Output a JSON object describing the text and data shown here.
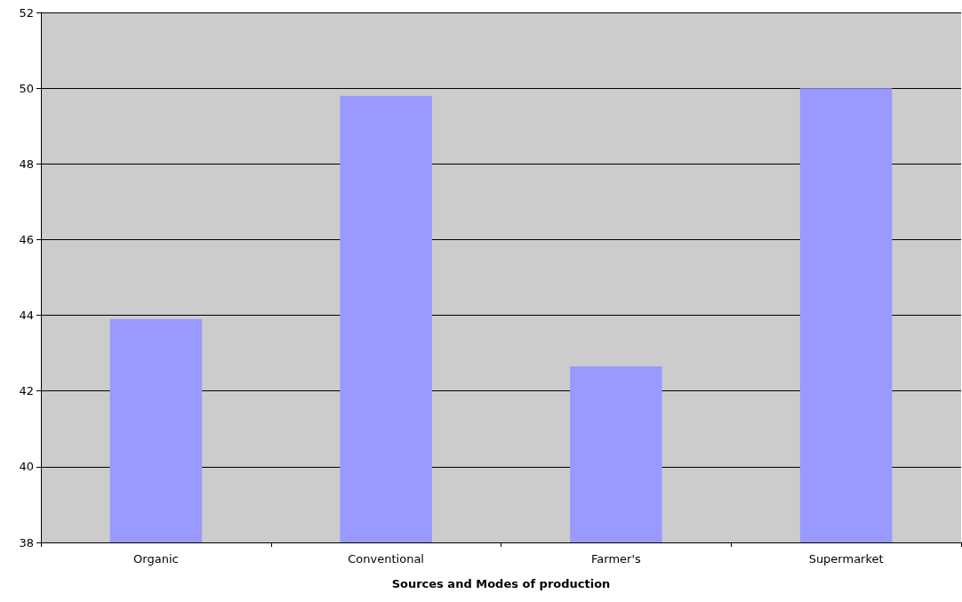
{
  "chart_data": {
    "type": "bar",
    "xlabel": "Sources and Modes of production",
    "categories": [
      "Organic",
      "Conventional",
      "Farmer's",
      "Supermarket"
    ],
    "values": [
      43.9,
      49.8,
      42.65,
      50.0
    ],
    "color": "#9999ff",
    "ylim": [
      38,
      52
    ],
    "yticks": [
      38,
      40,
      42,
      44,
      46,
      48,
      50,
      52
    ],
    "grid": "y"
  }
}
